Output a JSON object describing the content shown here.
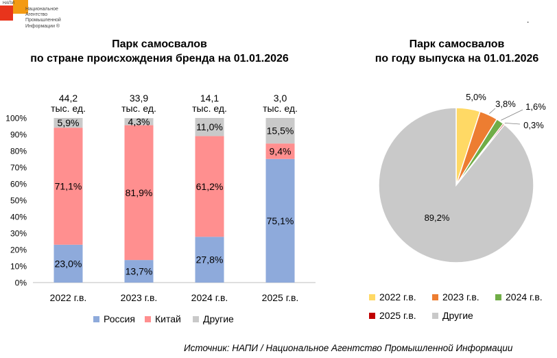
{
  "header": {
    "logo_abbr": "НАПИ",
    "logo_text": "Национальное\nАгентство\nПромышленной\nИнформации ®",
    "corner_mark": "."
  },
  "colors": {
    "russia": "#8eaadb",
    "china": "#ff8f8f",
    "other": "#c9c9c9",
    "y2022": "#ffd965",
    "y2023": "#ed7d31",
    "y2024": "#70ad47",
    "y2025": "#c00000",
    "yother": "#c9c9c9"
  },
  "chart_data": [
    {
      "type": "bar",
      "stacked": true,
      "title_lines": [
        "Парк самосвалов",
        "по стране происхождения бренда на 01.01.2026"
      ],
      "categories": [
        "2022 г.в.",
        "2023 г.в.",
        "2024 г.в.",
        "2025 г.в."
      ],
      "totals": [
        {
          "value": "44,2",
          "unit": "тыс. ед."
        },
        {
          "value": "33,9",
          "unit": "тыс. ед."
        },
        {
          "value": "14,1",
          "unit": "тыс. ед."
        },
        {
          "value": "3,0",
          "unit": "тыс. ед."
        }
      ],
      "series": [
        {
          "name": "Россия",
          "color_key": "russia",
          "values": [
            23.0,
            13.7,
            27.8,
            75.1
          ],
          "labels": [
            "23,0%",
            "13,7%",
            "27,8%",
            "75,1%"
          ]
        },
        {
          "name": "Китай",
          "color_key": "china",
          "values": [
            71.1,
            81.9,
            61.2,
            9.4
          ],
          "labels": [
            "71,1%",
            "81,9%",
            "61,2%",
            "9,4%"
          ]
        },
        {
          "name": "Другие",
          "color_key": "other",
          "values": [
            5.9,
            4.3,
            11.0,
            15.5
          ],
          "labels": [
            "5,9%",
            "4,3%",
            "11,0%",
            "15,5%"
          ]
        }
      ],
      "y_ticks": [
        "0%",
        "10%",
        "20%",
        "30%",
        "40%",
        "50%",
        "60%",
        "70%",
        "80%",
        "90%",
        "100%"
      ],
      "ylim": [
        0,
        100
      ],
      "legend_position": "bottom"
    },
    {
      "type": "pie",
      "title_lines": [
        "Парк самосвалов",
        "по году выпуска на 01.01.2026"
      ],
      "slices": [
        {
          "name": "2022 г.в.",
          "color_key": "y2022",
          "value": 5.0,
          "label": "5,0%"
        },
        {
          "name": "2023 г.в.",
          "color_key": "y2023",
          "value": 3.8,
          "label": "3,8%"
        },
        {
          "name": "2024 г.в.",
          "color_key": "y2024",
          "value": 1.6,
          "label": "1,6%"
        },
        {
          "name": "2025 г.в.",
          "color_key": "y2025",
          "value": 0.3,
          "label": "0,3%"
        },
        {
          "name": "Другие",
          "color_key": "yother",
          "value": 89.2,
          "label": "89,2%"
        }
      ],
      "legend_position": "bottom"
    }
  ],
  "footer": {
    "source": "Источник: НАПИ / Национальное Агентство Промышленной Информации"
  }
}
